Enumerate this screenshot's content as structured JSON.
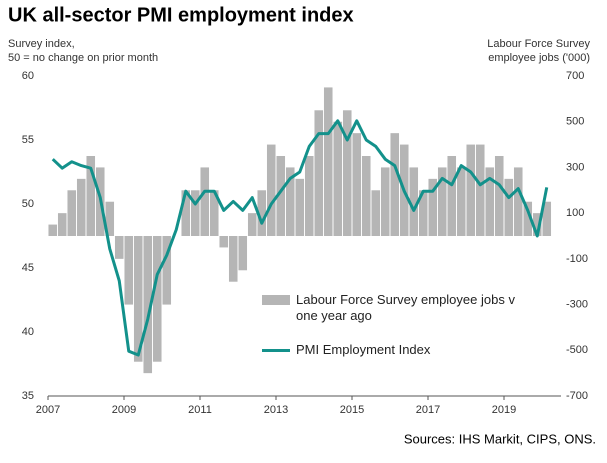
{
  "chart_data": {
    "type": "bar-line",
    "title": "UK all-sector PMI employment index",
    "y_label": [
      "Survey index,",
      "50 = no change on prior month"
    ],
    "y2_label": [
      "Labour Force Survey",
      "employee jobs  ('000)"
    ],
    "source": "Sources: IHS Markit, CIPS, ONS.",
    "x": [
      2007.0,
      2007.25,
      2007.5,
      2007.75,
      2008.0,
      2008.25,
      2008.5,
      2008.75,
      2009.0,
      2009.25,
      2009.5,
      2009.75,
      2010.0,
      2010.25,
      2010.5,
      2010.75,
      2011.0,
      2011.25,
      2011.5,
      2011.75,
      2012.0,
      2012.25,
      2012.5,
      2012.75,
      2013.0,
      2013.25,
      2013.5,
      2013.75,
      2014.0,
      2014.25,
      2014.5,
      2014.75,
      2015.0,
      2015.25,
      2015.5,
      2015.75,
      2016.0,
      2016.25,
      2016.5,
      2016.75,
      2017.0,
      2017.25,
      2017.5,
      2017.75,
      2018.0,
      2018.25,
      2018.5,
      2018.75,
      2019.0,
      2019.25,
      2019.5,
      2019.75,
      2020.0
    ],
    "xlim": [
      2007,
      2020.5
    ],
    "xticks": [
      2007,
      2009,
      2011,
      2013,
      2015,
      2017,
      2019
    ],
    "ylim": [
      35,
      60
    ],
    "yticks": [
      35,
      40,
      45,
      50,
      55,
      60
    ],
    "y2lim": [
      -700,
      700
    ],
    "y2ticks": [
      -700,
      -500,
      -300,
      -100,
      100,
      300,
      500,
      700
    ],
    "series": [
      {
        "name": "Labour Force Survey employee jobs v one year ago",
        "kind": "bar",
        "axis": "y2",
        "color": "#b5b5b5",
        "values": [
          50,
          100,
          200,
          250,
          350,
          300,
          150,
          -100,
          -300,
          -550,
          -600,
          -550,
          -300,
          0,
          200,
          200,
          300,
          200,
          -50,
          -200,
          -150,
          100,
          200,
          400,
          350,
          300,
          250,
          350,
          550,
          650,
          500,
          550,
          450,
          350,
          200,
          300,
          450,
          400,
          300,
          200,
          250,
          300,
          350,
          300,
          400,
          400,
          300,
          350,
          250,
          300,
          150,
          100,
          150
        ]
      },
      {
        "name": "PMI Employment Index",
        "kind": "line",
        "axis": "y",
        "color": "#13918b",
        "values": [
          53.5,
          52.8,
          53.3,
          53.0,
          52.8,
          50.5,
          46.5,
          44,
          38.5,
          38.2,
          41,
          44.5,
          46,
          48,
          51,
          50,
          51,
          51,
          49.5,
          50.2,
          49.5,
          50.5,
          48.5,
          50,
          51,
          52,
          52.5,
          54.5,
          55.5,
          55.5,
          56.5,
          55,
          56.5,
          55,
          54.5,
          53.5,
          53,
          51,
          49.5,
          51,
          51,
          52,
          51.5,
          53,
          52.5,
          51.5,
          52,
          51.5,
          50.5,
          51.2,
          49.5,
          47.5,
          51.3
        ]
      }
    ]
  }
}
